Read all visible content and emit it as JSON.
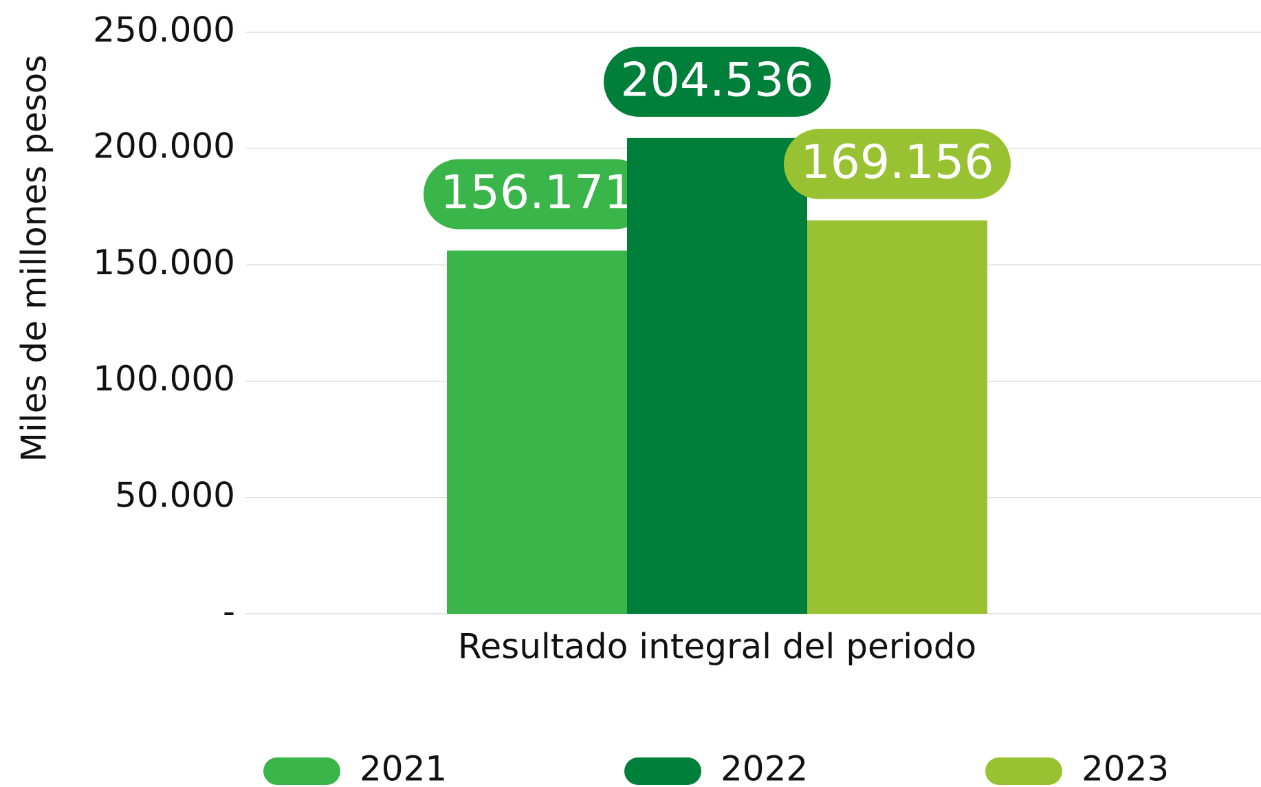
{
  "chart_data": {
    "type": "bar",
    "y_label": "Miles de millones pesos",
    "categories": [
      "Resultado integral del periodo"
    ],
    "series": [
      {
        "name": "2021",
        "color": "#3ab54a",
        "values": [
          156171
        ],
        "value_labels": [
          "156.171"
        ]
      },
      {
        "name": "2022",
        "color": "#007f3a",
        "values": [
          204536
        ],
        "value_labels": [
          "204.536"
        ]
      },
      {
        "name": "2023",
        "color": "#99c232",
        "values": [
          169156
        ],
        "value_labels": [
          "169.156"
        ]
      }
    ],
    "ylim": [
      0,
      250000
    ],
    "yticks": [
      {
        "value": 0,
        "label": "-"
      },
      {
        "value": 50000,
        "label": "50.000"
      },
      {
        "value": 100000,
        "label": "100.000"
      },
      {
        "value": 150000,
        "label": "150.000"
      },
      {
        "value": 200000,
        "label": "200.000"
      },
      {
        "value": 250000,
        "label": "250.000"
      }
    ],
    "grid": true
  }
}
